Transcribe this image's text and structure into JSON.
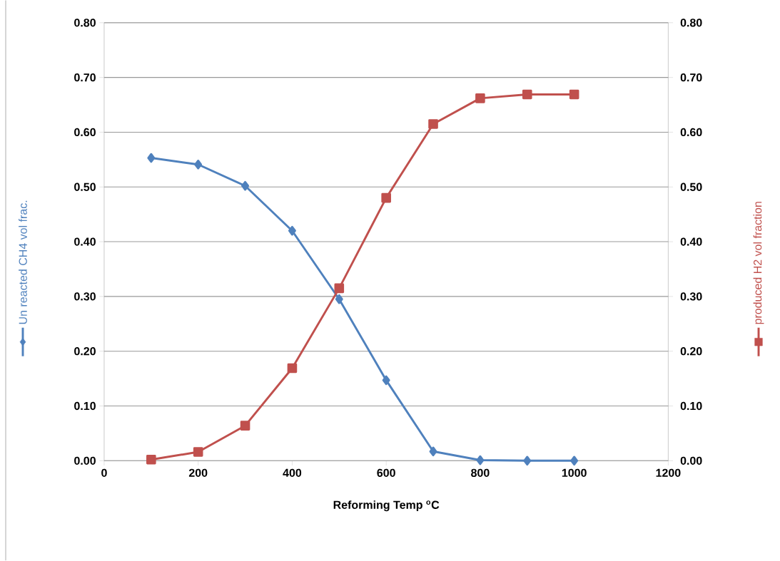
{
  "chart_data": {
    "type": "line",
    "xlabel": "Reforming Temp $^{o}$C",
    "x": [
      100,
      200,
      300,
      400,
      500,
      600,
      700,
      800,
      900,
      1000
    ],
    "series": [
      {
        "name": "Un reacted CH4  vol frac.",
        "color": "#4f81bd",
        "marker": "diamond",
        "values": [
          0.553,
          0.541,
          0.502,
          0.42,
          0.295,
          0.147,
          0.017,
          0.001,
          0.0,
          0.0
        ]
      },
      {
        "name": "produced H2  vol fraction",
        "color": "#c0504d",
        "marker": "square",
        "axis": "y2",
        "values": [
          0.002,
          0.016,
          0.064,
          0.169,
          0.315,
          0.48,
          0.615,
          0.662,
          0.669,
          0.669
        ]
      }
    ],
    "xlim": [
      0,
      1200
    ],
    "xticks": [
      0,
      200,
      400,
      600,
      800,
      1000,
      1200
    ],
    "ylim": [
      0,
      0.8
    ],
    "yticks": [
      {
        "value": 0,
        "label": "0.00"
      },
      {
        "value": 0.1,
        "label": "0.10"
      },
      {
        "value": 0.2,
        "label": "0.20"
      },
      {
        "value": 0.3,
        "label": "0.30"
      },
      {
        "value": 0.4,
        "label": "0.40"
      },
      {
        "value": 0.5,
        "label": "0.50"
      },
      {
        "value": 0.6,
        "label": "0.60"
      },
      {
        "value": 0.7,
        "label": "0.70"
      },
      {
        "value": 0.8,
        "label": "0.80"
      }
    ],
    "y2lim": [
      0,
      0.8
    ],
    "y2ticks": [
      {
        "value": 0,
        "label": "0.00"
      },
      {
        "value": 0.1,
        "label": "0.10"
      },
      {
        "value": 0.2,
        "label": "0.20"
      },
      {
        "value": 0.3,
        "label": "0.30"
      },
      {
        "value": 0.4,
        "label": "0.40"
      },
      {
        "value": 0.5,
        "label": "0.50"
      },
      {
        "value": 0.6,
        "label": "0.60"
      },
      {
        "value": 0.7,
        "label": "0.70"
      },
      {
        "value": 0.8,
        "label": "0.80"
      }
    ],
    "grid": "y"
  }
}
